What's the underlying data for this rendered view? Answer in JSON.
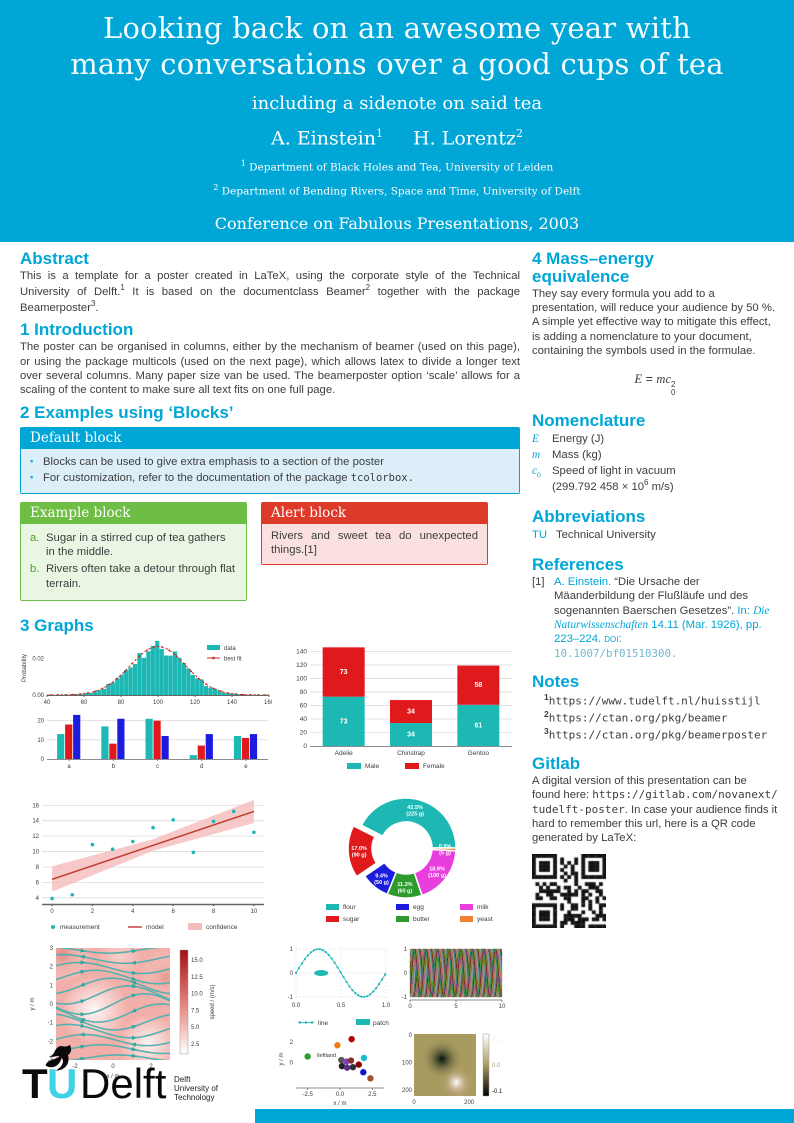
{
  "theme": {
    "accent": "#00A6D6",
    "example_green": "#6EBE46",
    "alert_red": "#DD3A2A"
  },
  "header": {
    "title": "Looking back on an awesome year with many conversations over a good cups of tea",
    "subtitle": "including a sidenote on said tea",
    "authors": [
      {
        "name": "A. Einstein",
        "sup": "1"
      },
      {
        "name": "H. Lorentz",
        "sup": "2"
      }
    ],
    "affiliations": [
      {
        "sup": "1",
        "text": "Department of Black Holes and Tea, University of Leiden"
      },
      {
        "sup": "2",
        "text": "Department of Bending Rivers, Space and Time, University of Delft"
      }
    ],
    "conference": "Conference on Fabulous Presentations, 2003"
  },
  "left": {
    "abstract": {
      "heading": "Abstract",
      "p1": "This is a template for a poster created in LaTeX, using the corporate style of the Technical University of Delft.",
      "s1": "1",
      "p2": " It is based on the documentclass Beamer",
      "s2": "2",
      "p3": " together with the package Beamerposter",
      "s3": "3",
      "p4": "."
    },
    "intro": {
      "heading": "1 Introduction",
      "text": "The poster can be organised in columns, either by the mechanism of beamer (used on this page), or using the package multicols (used on the next page), which allows latex to divide a longer text over several columns. Many paper size van be used. The beamerposter option ‘scale’ allows for a scaling of the content to make sure all text fits on one full page."
    },
    "blocks": {
      "heading": "2 Examples using ‘Blocks’",
      "default": {
        "title": "Default block",
        "item1": "Blocks can be used to give extra emphasis to a section of the poster",
        "item2pre": "For customization, refer to the documentation of the package ",
        "item2mono": "tcolorbox."
      },
      "example": {
        "title": "Example block",
        "items": [
          {
            "label": "a.",
            "text": "Sugar in a stirred cup of tea gathers in the middle."
          },
          {
            "label": "b.",
            "text": "Rivers often take a detour through flat terrain."
          }
        ]
      },
      "alert": {
        "title": "Alert block",
        "text": "Rivers and sweet tea do unexpected things.[1]"
      }
    },
    "graphs_heading": "3 Graphs"
  },
  "right": {
    "mass": {
      "heading": "4 Mass–energy equivalence",
      "text": "They say every formula you add to a presentation, will reduce your audience by 50 %. A simple yet effective way to mitigate this effect, is adding a nomenclature to your document, containing the symbols used in the formulae.",
      "formula": {
        "E": "E",
        "eq": " = ",
        "mc": "mc",
        "sup": "2",
        "sub": "0"
      }
    },
    "nomenclature": {
      "heading": "Nomenclature",
      "items": [
        {
          "sym": "E",
          "desc": "Energy (J)"
        },
        {
          "sym": "m",
          "desc": "Mass (kg)"
        }
      ],
      "c0": {
        "sym": "c",
        "sub": "0",
        "desc": "Speed of light in vacuum",
        "desc2a": "(299.792 458 × 10",
        "desc2sup": "6",
        "desc2b": " m/s)"
      }
    },
    "abbrev": {
      "heading": "Abbreviations",
      "abbr": "TU",
      "desc": "Technical University"
    },
    "references": {
      "heading": "References",
      "marker": "[1]",
      "author": "A. Einstein.",
      "title": "“Die Ursache der Mäanderbildung der Flußläufe und des sogenannten Baerschen Gesetzes”. ",
      "in_label": "In: ",
      "journal": "Die Naturwissenschaften",
      "detail": " 14.11 (Mar. 1926), pp. 223–224. ",
      "doi_label": "doi:",
      "doi": "10.1007/bf01510300."
    },
    "notes": {
      "heading": "Notes",
      "items": [
        {
          "sup": "1",
          "url": "https://www.tudelft.nl/huisstijl"
        },
        {
          "sup": "2",
          "url": "https://ctan.org/pkg/beamer"
        },
        {
          "sup": "3",
          "url": "https://ctan.org/pkg/beamerposter"
        }
      ]
    },
    "gitlab": {
      "heading": "Gitlab",
      "p1": "A digital version of this presentation can be found here: ",
      "url": "https://gitlab.com/novanext/tudelft-poster",
      "p2": ". In case your audience finds it hard to remember this url, here is a QR code generated by LaTeX:"
    }
  },
  "footer": {
    "logo": {
      "t": "T",
      "u": "U",
      "delft": "Delft",
      "sub1": "Delft",
      "sub2": "University of",
      "sub3": "Technology"
    }
  },
  "chart_data": [
    {
      "id": "hist",
      "type": "area",
      "ylabel": "Probability",
      "mean": 100,
      "std": 15,
      "peak": 0.0265,
      "xticks": [
        40,
        60,
        80,
        100,
        120,
        140,
        160
      ],
      "yticks": [
        "0.00",
        "0.02"
      ],
      "legend": [
        "data",
        "best fit"
      ],
      "colors": {
        "data": "#1EB8B4",
        "fit": "#C8281E"
      }
    },
    {
      "id": "grouped",
      "type": "bar",
      "categories": [
        "a",
        "b",
        "c",
        "d",
        "e"
      ],
      "yticks": [
        0,
        10,
        20
      ],
      "series": [
        {
          "name": "teal",
          "color": "#1EB8B4",
          "values": [
            13,
            17,
            21,
            2,
            12
          ]
        },
        {
          "name": "red",
          "color": "#E01A1C",
          "values": [
            18,
            8,
            20,
            7,
            11
          ]
        },
        {
          "name": "blue",
          "color": "#1C1CDE",
          "values": [
            23,
            21,
            12,
            13,
            13
          ]
        }
      ]
    },
    {
      "id": "stacked",
      "type": "bar",
      "stacked": true,
      "categories": [
        "Adelie",
        "Chinstrap",
        "Gentoo"
      ],
      "yticks": [
        0,
        20,
        40,
        60,
        80,
        100,
        120,
        140
      ],
      "series": [
        {
          "name": "Male",
          "color": "#1EB8B4",
          "values": [
            73,
            34,
            61
          ]
        },
        {
          "name": "Female",
          "color": "#E01A1C",
          "values": [
            73,
            34,
            58
          ]
        }
      ]
    },
    {
      "id": "regression",
      "type": "scatter",
      "points": [
        [
          0,
          3.9
        ],
        [
          1,
          4.4
        ],
        [
          2,
          10.9
        ],
        [
          3,
          10.3
        ],
        [
          4,
          11.3
        ],
        [
          5,
          13.1
        ],
        [
          6,
          14.1
        ],
        [
          7,
          9.9
        ],
        [
          8,
          13.9
        ],
        [
          9,
          15.2
        ],
        [
          10,
          12.5
        ]
      ],
      "line": [
        [
          0,
          6.4
        ],
        [
          10,
          15.2
        ]
      ],
      "band_top": [
        [
          0,
          8.1
        ],
        [
          5,
          11.6
        ],
        [
          10,
          16.7
        ]
      ],
      "band_bottom": [
        [
          0,
          4.8
        ],
        [
          5,
          10.1
        ],
        [
          10,
          13.7
        ]
      ],
      "xticks": [
        0,
        2,
        4,
        6,
        8,
        10
      ],
      "yticks": [
        4,
        6,
        8,
        10,
        12,
        14,
        16
      ],
      "legend": [
        "measurement",
        "model",
        "confidence"
      ],
      "colors": {
        "points": "#1EB8B4",
        "line": "#C0392B",
        "band": "#F5BCBC"
      }
    },
    {
      "id": "donut",
      "type": "pie",
      "slices": [
        {
          "label": "flour",
          "pct": 42.5,
          "amount": "225 g",
          "color": "#1EB8B4",
          "explode": false
        },
        {
          "label": "sugar",
          "pct": 17.0,
          "amount": "90 g",
          "color": "#E01A1C",
          "explode": true
        },
        {
          "label": "egg",
          "pct": 9.4,
          "amount": "50 g",
          "color": "#1C1CDE",
          "explode": false
        },
        {
          "label": "butter",
          "pct": 11.3,
          "amount": "60 g",
          "color": "#2E9B2E",
          "explode": false
        },
        {
          "label": "milk",
          "pct": 18.9,
          "amount": "100 g",
          "color": "#E93EDE",
          "explode": false
        },
        {
          "label": "yeast",
          "pct": 0.9,
          "amount": "5 g",
          "color": "#F2802D",
          "explode": false
        }
      ],
      "legend_cols": [
        [
          "flour",
          "sugar"
        ],
        [
          "egg",
          "butter"
        ],
        [
          "milk",
          "yeast"
        ]
      ]
    },
    {
      "id": "stream",
      "type": "heatmap",
      "xlabel": "x / m",
      "ylabel": "y / m",
      "xticks": [
        -2,
        0,
        2
      ],
      "yticks": [
        3,
        2,
        1,
        0,
        -1,
        -2,
        -3
      ],
      "colorbar": {
        "label": "speed / (m/s)",
        "ticks": [
          "15.0",
          "12.5",
          "10.0",
          "7.5",
          "5.0",
          "2.5"
        ]
      }
    },
    {
      "id": "sine",
      "type": "line",
      "xticks": [
        "0.0",
        "0.5",
        "1.0"
      ],
      "yticks": [
        1,
        0,
        -1
      ],
      "legend": [
        "line",
        "patch"
      ],
      "color": "#1EB8B4",
      "ellipse": {
        "cx": 0.28,
        "cy": 0
      }
    },
    {
      "id": "phases",
      "type": "line",
      "xticks": [
        0,
        5,
        10
      ],
      "yticks": [
        1,
        0,
        -1
      ],
      "n_lines": 24
    },
    {
      "id": "cluster",
      "type": "scatter",
      "xlabel": "x / m",
      "ylabel": "y / m",
      "xticks": [
        "-2.5",
        "0.0",
        "2.5"
      ],
      "yticks": [
        2,
        0
      ],
      "annotation": "\\leftland",
      "points": [
        [
          -2.5,
          0.6,
          "#2ca02c"
        ],
        [
          0.9,
          2.3,
          "#b30000"
        ],
        [
          -0.2,
          1.7,
          "#f07f0e"
        ],
        [
          1.85,
          0.45,
          "#17becf"
        ],
        [
          0.1,
          0.25,
          "#555555"
        ],
        [
          0.5,
          0.1,
          "#7f3fbf"
        ],
        [
          0.85,
          0.2,
          "#8c2d2d"
        ],
        [
          0.15,
          -0.35,
          "#222222"
        ],
        [
          0.55,
          -0.5,
          "#5c2d91"
        ],
        [
          1.0,
          -0.45,
          "#303030"
        ],
        [
          1.45,
          -0.2,
          "#8b0000"
        ],
        [
          1.8,
          -0.95,
          "#1414d0"
        ],
        [
          2.35,
          -1.55,
          "#a0522d"
        ]
      ]
    },
    {
      "id": "imshow",
      "type": "heatmap",
      "xticks": [
        0,
        200
      ],
      "yticks": [
        0,
        100,
        200
      ],
      "colorbar": {
        "ticks": [
          "0.1",
          "0.0",
          "-0.1"
        ]
      }
    }
  ]
}
